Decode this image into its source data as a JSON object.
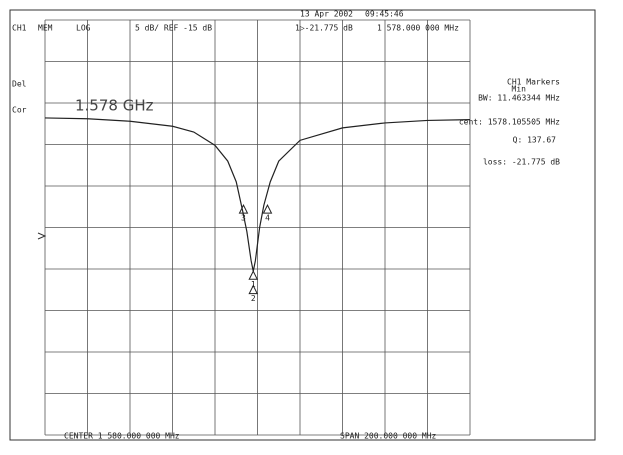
{
  "screen": {
    "date": "13 Apr 2002",
    "time": "09:45:46",
    "channel": "CH1",
    "mem": "MEM",
    "format": "LOG",
    "scale": "5 dB/ REF -15 dB",
    "marker_readout": "1▷-21.775 dB",
    "marker_freq": "1 578.000 000 MHz",
    "side_labels": [
      "Del",
      "Cor"
    ],
    "big_label": "1.578 GHz",
    "markers_title": "CH1 Markers",
    "markers_mode": "Min",
    "bw": "BW: 11.463344 MHz",
    "cent": "cent: 1578.105505 MHz",
    "q": "Q: 137.67",
    "loss": "loss: -21.775 dB",
    "center": "CENTER 1 580.000 000 MHz",
    "span": "SPAN 200.000 000 MHz"
  },
  "chart_data": {
    "type": "line",
    "x": [
      1480,
      1500,
      1520,
      1540,
      1550,
      1560,
      1566,
      1570,
      1573,
      1575,
      1577,
      1578,
      1579,
      1581,
      1583,
      1586,
      1590,
      1600,
      1620,
      1640,
      1660,
      1680
    ],
    "series": [
      {
        "color": "#222222",
        "values": [
          -3.3,
          -3.4,
          -3.7,
          -4.3,
          -5.0,
          -6.6,
          -8.5,
          -11,
          -14.5,
          -17,
          -20.5,
          -21.775,
          -20.5,
          -16.5,
          -13.8,
          -11,
          -8.5,
          -6,
          -4.5,
          -3.9,
          -3.6,
          -3.5
        ]
      }
    ],
    "xlim": [
      1480,
      1680
    ],
    "ylim": [
      -41.5,
      8.5
    ],
    "markers": [
      {
        "label": "1",
        "x": 1578,
        "y": -21.775
      },
      {
        "label": "2",
        "x": 1578,
        "y": -23.5
      },
      {
        "label": "3",
        "x": 1573.4,
        "y": -13.8
      },
      {
        "label": "4",
        "x": 1584.7,
        "y": -13.8
      }
    ]
  }
}
